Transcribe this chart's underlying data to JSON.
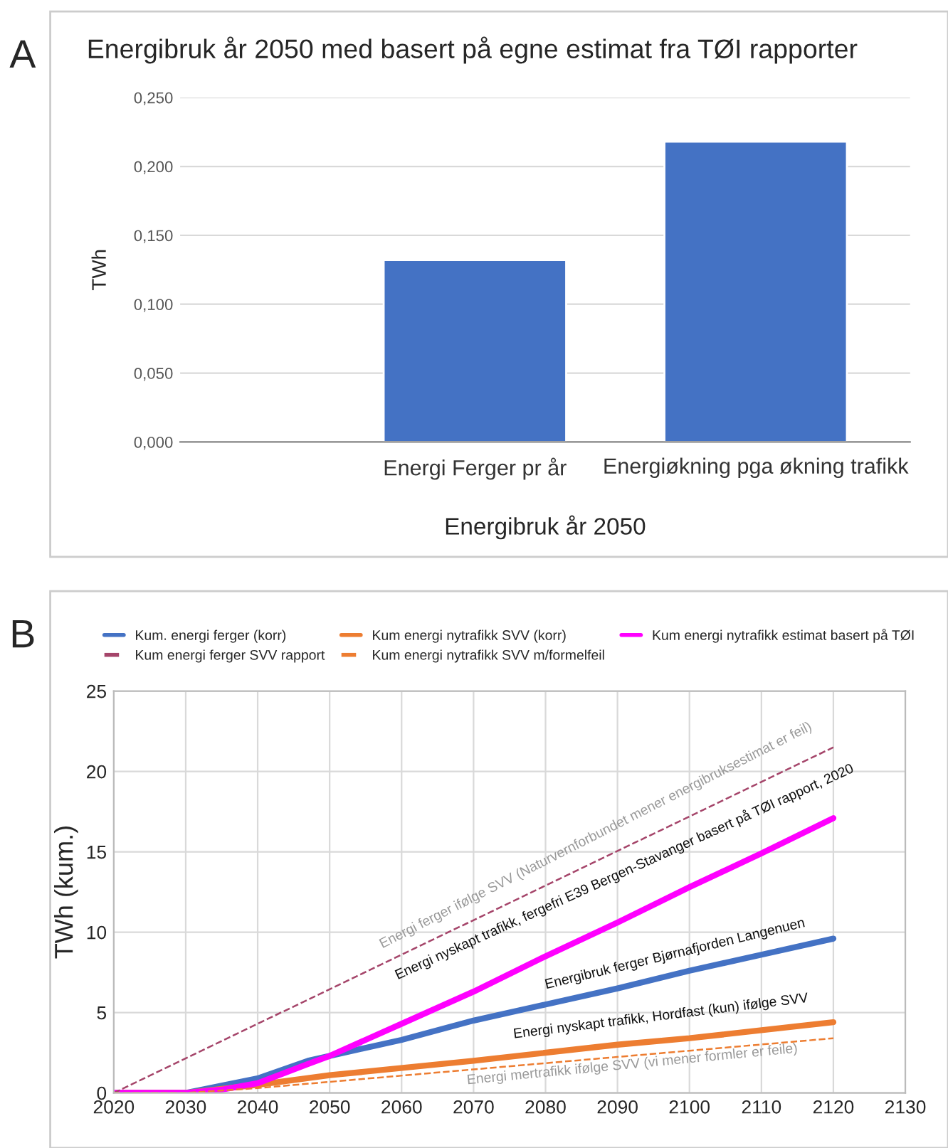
{
  "chart_data": [
    {
      "type": "bar",
      "title": "Energibruk år 2050 med basert på egne estimat fra TØI rapporter",
      "xlabel": "Energibruk år 2050",
      "ylabel": "TWh",
      "categories": [
        "Energi Ferger pr år",
        "Energiøkning pga økning trafikk"
      ],
      "values": [
        0.132,
        0.218
      ],
      "color": "#4472c4",
      "ylim": [
        0,
        0.25
      ],
      "yticks": [
        {
          "value": 0,
          "label": "0,000"
        },
        {
          "value": 0.05,
          "label": "0,050"
        },
        {
          "value": 0.1,
          "label": "0,100"
        },
        {
          "value": 0.15,
          "label": "0,150"
        },
        {
          "value": 0.2,
          "label": "0,200"
        },
        {
          "value": 0.25,
          "label": "0,250"
        }
      ],
      "grid": "y",
      "annotations": [
        "A"
      ]
    },
    {
      "type": "line",
      "ylabel": "TWh (kum.)",
      "xlim": [
        2020,
        2130
      ],
      "xticks": [
        2020,
        2030,
        2040,
        2050,
        2060,
        2070,
        2080,
        2090,
        2100,
        2110,
        2120,
        2130
      ],
      "ylim": [
        0,
        25
      ],
      "yticks": [
        0,
        5,
        10,
        15,
        20,
        25
      ],
      "grid": true,
      "legend": "top",
      "series": [
        {
          "name": "Kum. energi ferger (korr)",
          "color": "#4472c4",
          "x": [
            2020,
            2030,
            2040,
            2047,
            2060,
            2070,
            2080,
            2090,
            2100,
            2110,
            2120
          ],
          "values": [
            0,
            0,
            0.9,
            2,
            3.3,
            4.5,
            5.5,
            6.5,
            7.6,
            8.6,
            9.6
          ]
        },
        {
          "name": "Kum energi nytrafikk SVV (korr)",
          "color": "#ed7d31",
          "x": [
            2020,
            2030,
            2040,
            2050,
            2070,
            2090,
            2100,
            2120
          ],
          "values": [
            0,
            0,
            0.5,
            1.1,
            2.0,
            3.0,
            3.4,
            4.4
          ]
        },
        {
          "name": "Kum energi nytrafikk estimat basert på TØI",
          "color": "#ff00ff",
          "x": [
            2020,
            2030,
            2035,
            2040,
            2047,
            2050,
            2060,
            2070,
            2080,
            2090,
            2100,
            2110,
            2120
          ],
          "values": [
            0,
            0,
            0.2,
            0.6,
            1.8,
            2.3,
            4.3,
            6.3,
            8.5,
            10.6,
            12.8,
            14.9,
            17.1
          ]
        },
        {
          "name": "Kum energi ferger SVV rapport",
          "color": "#a5456a",
          "line_style": "dashed",
          "x": [
            2020,
            2120
          ],
          "values": [
            0,
            21.5
          ]
        },
        {
          "name": "Kum energi nytrafikk SVV m/formelfeil",
          "color": "#ed7d31",
          "line_style": "dashed",
          "x": [
            2020,
            2030,
            2040,
            2120
          ],
          "values": [
            0,
            0,
            0.3,
            3.4
          ]
        }
      ],
      "annotations": [
        "B",
        "Energi ferger ifølge SVV (Naturvernforbundet mener energibruksestimat er feil)",
        "Energi nyskapt trafikk, fergefri E39 Bergen-Stavanger basert på TØI rapport, 2020",
        "Energibruk ferger Bjørnafjorden Langenuen",
        "Energi nyskapt trafikk, Hordfast (kun) ifølge SVV",
        "Energi mertrafikk ifølge SVV (vi mener formler er feile)"
      ]
    }
  ]
}
